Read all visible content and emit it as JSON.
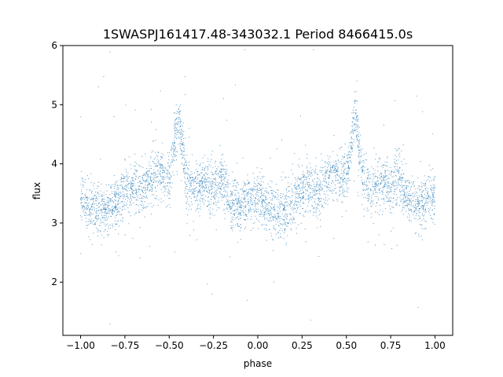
{
  "chart_data": {
    "type": "scatter",
    "title": "1SWASPJ161417.48-343032.1 Period 8466415.0s",
    "xlabel": "phase",
    "ylabel": "flux",
    "xlim": [
      -1.1,
      1.1
    ],
    "ylim": [
      1.1,
      6.0
    ],
    "x_ticks": [
      -1.0,
      -0.75,
      -0.5,
      -0.25,
      0.0,
      0.25,
      0.5,
      0.75,
      1.0
    ],
    "x_tick_labels": [
      "−1.00",
      "−0.75",
      "−0.50",
      "−0.25",
      "0.00",
      "0.25",
      "0.50",
      "0.75",
      "1.00"
    ],
    "y_ticks": [
      2,
      3,
      4,
      5,
      6
    ],
    "y_tick_labels": [
      "2",
      "3",
      "4",
      "5",
      "6"
    ],
    "grid": false,
    "point_color": "#1f77b4",
    "profile_phase": [
      0.0,
      0.05,
      0.1,
      0.15,
      0.2,
      0.25,
      0.3,
      0.35,
      0.4,
      0.45,
      0.5,
      0.55,
      0.6,
      0.65,
      0.7,
      0.75,
      0.8,
      0.85,
      0.9,
      0.95,
      1.0
    ],
    "profile_flux": [
      3.45,
      3.3,
      3.2,
      3.2,
      3.35,
      3.55,
      3.6,
      3.5,
      3.85,
      3.85,
      3.7,
      4.85,
      3.65,
      3.55,
      3.7,
      3.6,
      3.75,
      3.4,
      3.3,
      3.4,
      3.45
    ]
  }
}
